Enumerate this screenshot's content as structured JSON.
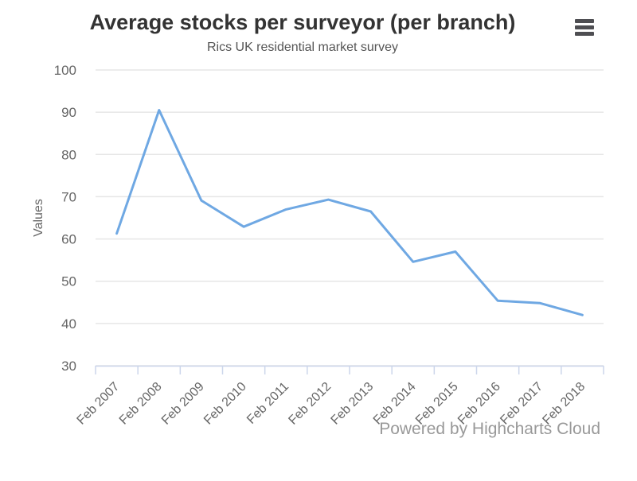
{
  "chart_data": {
    "type": "line",
    "title": "Average stocks per surveyor (per branch)",
    "subtitle": "Rics UK residential market survey",
    "categories": [
      "Feb 2007",
      "Feb 2008",
      "Feb 2009",
      "Feb 2010",
      "Feb 2011",
      "Feb 2012",
      "Feb 2013",
      "Feb 2014",
      "Feb 2015",
      "Feb 2016",
      "Feb 2017",
      "Feb 2018"
    ],
    "series": [
      {
        "name": "Values",
        "values": [
          61.3,
          90.5,
          69.1,
          62.9,
          67.0,
          69.3,
          66.5,
          54.6,
          57.0,
          45.4,
          44.8,
          42.0
        ]
      }
    ],
    "xlabel": "",
    "ylabel": "Values",
    "ylim": [
      30,
      100
    ],
    "ytick_step": 10,
    "grid": true,
    "legend": false,
    "x_label_rotation": -45
  },
  "export_menu": {
    "icon": "hamburger-icon"
  },
  "credits": {
    "label": "Powered by Highcharts Cloud"
  },
  "colors": {
    "series": "#6fa8e3",
    "grid": "#e6e6e6",
    "axis_line": "#ccd6eb",
    "axis_label": "#666666",
    "title": "#333333",
    "subtitle": "#555555",
    "credits": "#999999",
    "menu_icon": "#4e4e52",
    "background": "#ffffff"
  }
}
